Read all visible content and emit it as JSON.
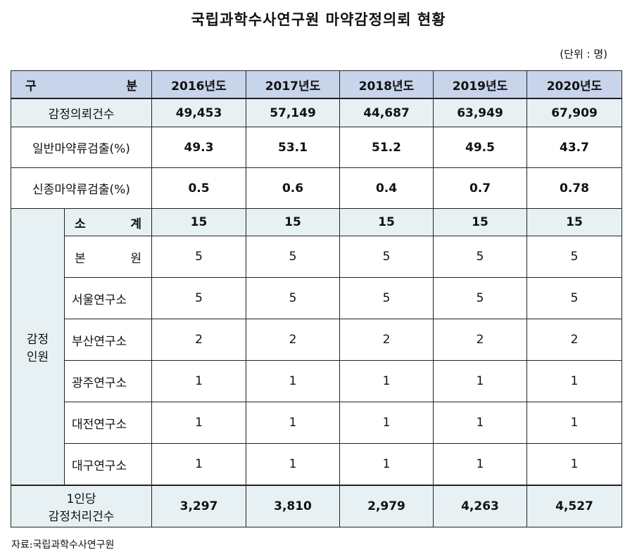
{
  "title": "국립과학수사연구원 마약감정의뢰 현황",
  "unit": "(단위 : 명)",
  "header": {
    "category": "구 분",
    "years": [
      "2016년도",
      "2017년도",
      "2018년도",
      "2019년도",
      "2020년도"
    ]
  },
  "rows": {
    "requests": {
      "label": "감정의뢰건수",
      "values": [
        "49,453",
        "57,149",
        "44,687",
        "63,949",
        "67,909"
      ]
    },
    "general": {
      "label": "일반마약류검출(%)",
      "values": [
        "49.3",
        "53.1",
        "51.2",
        "49.5",
        "43.7"
      ]
    },
    "new": {
      "label": "신종마약류검출(%)",
      "values": [
        "0.5",
        "0.6",
        "0.4",
        "0.7",
        "0.78"
      ]
    }
  },
  "staff": {
    "group_label_line1": "감정",
    "group_label_line2": "인원",
    "subtotal": {
      "label": "소 계",
      "values": [
        "15",
        "15",
        "15",
        "15",
        "15"
      ]
    },
    "offices": [
      {
        "label": "본 원",
        "values": [
          "5",
          "5",
          "5",
          "5",
          "5"
        ]
      },
      {
        "label": "서울연구소",
        "values": [
          "5",
          "5",
          "5",
          "5",
          "5"
        ]
      },
      {
        "label": "부산연구소",
        "values": [
          "2",
          "2",
          "2",
          "2",
          "2"
        ]
      },
      {
        "label": "광주연구소",
        "values": [
          "1",
          "1",
          "1",
          "1",
          "1"
        ]
      },
      {
        "label": "대전연구소",
        "values": [
          "1",
          "1",
          "1",
          "1",
          "1"
        ]
      },
      {
        "label": "대구연구소",
        "values": [
          "1",
          "1",
          "1",
          "1",
          "1"
        ]
      }
    ]
  },
  "per_person": {
    "label_line1": "1인당",
    "label_line2": "감정처리건수",
    "values": [
      "3,297",
      "3,810",
      "2,979",
      "4,263",
      "4,527"
    ]
  },
  "source": "자료:국립과학수사연구원"
}
